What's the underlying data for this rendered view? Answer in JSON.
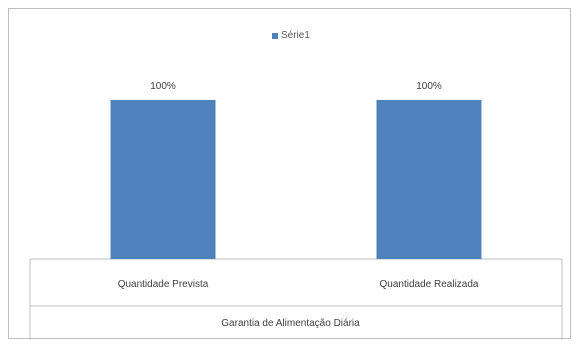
{
  "chart_data": {
    "type": "bar",
    "categories": [
      "Quantidade Prevista",
      "Quantidade Realizada"
    ],
    "series": [
      {
        "name": "Série1",
        "values": [
          100,
          100
        ],
        "data_labels": [
          "100%",
          "100%"
        ]
      }
    ],
    "title": "",
    "xlabel": "Garantia de Alimentação Diária",
    "ylabel": "",
    "ylim": [
      0,
      100
    ],
    "legend_position": "top",
    "grid": false,
    "colors": {
      "bar": "#4f81bd",
      "border": "#bfbfbf",
      "axis": "#bfbfbf",
      "text": "#404040"
    }
  }
}
